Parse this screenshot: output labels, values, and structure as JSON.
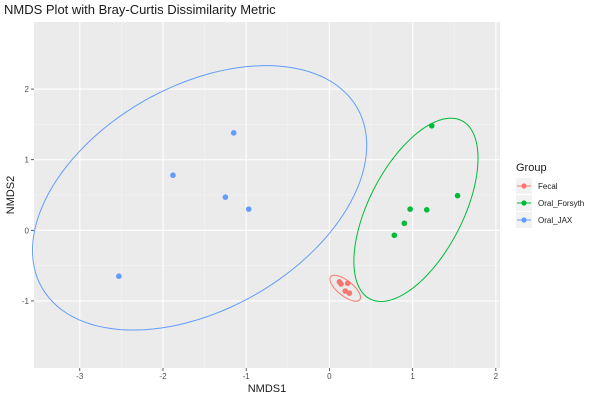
{
  "chart_data": {
    "type": "scatter",
    "title": "NMDS Plot with Bray-Curtis Dissimilarity Metric",
    "xlabel": "NMDS1",
    "ylabel": "NMDS2",
    "xlim": [
      -3.55,
      2.05
    ],
    "ylim": [
      -1.95,
      2.95
    ],
    "xticks": [
      -3,
      -2,
      -1,
      0,
      1,
      2
    ],
    "yticks": [
      -1,
      0,
      1,
      2
    ],
    "xtick_labels": [
      "-3",
      "-2",
      "-1",
      "0",
      "1",
      "2"
    ],
    "ytick_labels": [
      "-1",
      "0",
      "1",
      "2"
    ],
    "grid": true,
    "background": "#ebebeb",
    "legend": {
      "title": "Group",
      "position": "right"
    },
    "series": [
      {
        "name": "Fecal",
        "color": "#F8766D",
        "points": [
          {
            "x": 0.12,
            "y": -0.73
          },
          {
            "x": 0.22,
            "y": -0.75
          },
          {
            "x": 0.19,
            "y": -0.86
          },
          {
            "x": 0.24,
            "y": -0.89
          },
          {
            "x": 0.14,
            "y": -0.76
          }
        ],
        "ellipse": {
          "cx": 0.19,
          "cy": -0.82,
          "rx": 0.24,
          "ry": 0.1,
          "angle_deg": -45
        }
      },
      {
        "name": "Oral_Forsyth",
        "color": "#00BA38",
        "points": [
          {
            "x": 1.23,
            "y": 1.48
          },
          {
            "x": 1.54,
            "y": 0.49
          },
          {
            "x": 0.97,
            "y": 0.3
          },
          {
            "x": 1.17,
            "y": 0.29
          },
          {
            "x": 0.9,
            "y": 0.1
          },
          {
            "x": 0.78,
            "y": -0.07
          }
        ],
        "ellipse": {
          "cx": 1.04,
          "cy": 0.29,
          "rx": 1.38,
          "ry": 0.58,
          "angle_deg": 68
        }
      },
      {
        "name": "Oral_JAX",
        "color": "#619CFF",
        "points": [
          {
            "x": -1.15,
            "y": 1.38
          },
          {
            "x": -1.88,
            "y": 0.78
          },
          {
            "x": -1.25,
            "y": 0.47
          },
          {
            "x": -0.97,
            "y": 0.3
          },
          {
            "x": -2.53,
            "y": -0.65
          }
        ],
        "ellipse": {
          "cx": -1.56,
          "cy": 0.46,
          "rx": 2.3,
          "ry": 1.5,
          "angle_deg": 40
        }
      }
    ]
  }
}
